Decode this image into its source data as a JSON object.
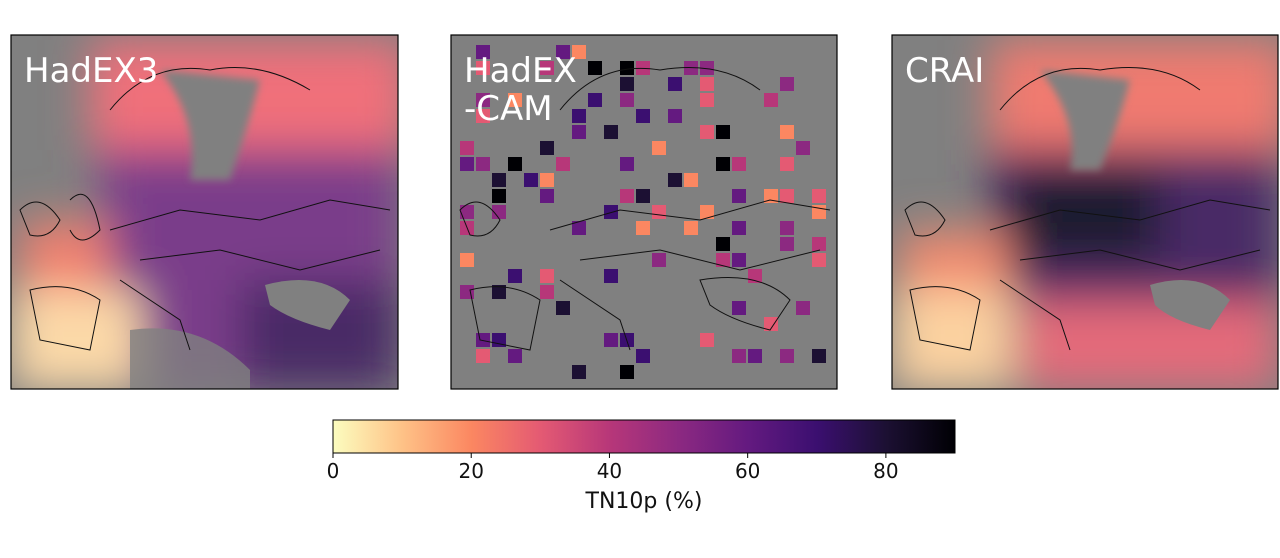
{
  "panels": [
    {
      "title_lines": [
        "HadEX3"
      ]
    },
    {
      "title_lines": [
        "HadEX",
        "-CAM"
      ]
    },
    {
      "title_lines": [
        "CRAI"
      ]
    }
  ],
  "colorbar": {
    "label": "TN10p (%)",
    "lim": [
      0,
      90
    ],
    "ticks": [
      0,
      20,
      40,
      60,
      80
    ],
    "colormap": "magma_r"
  }
}
